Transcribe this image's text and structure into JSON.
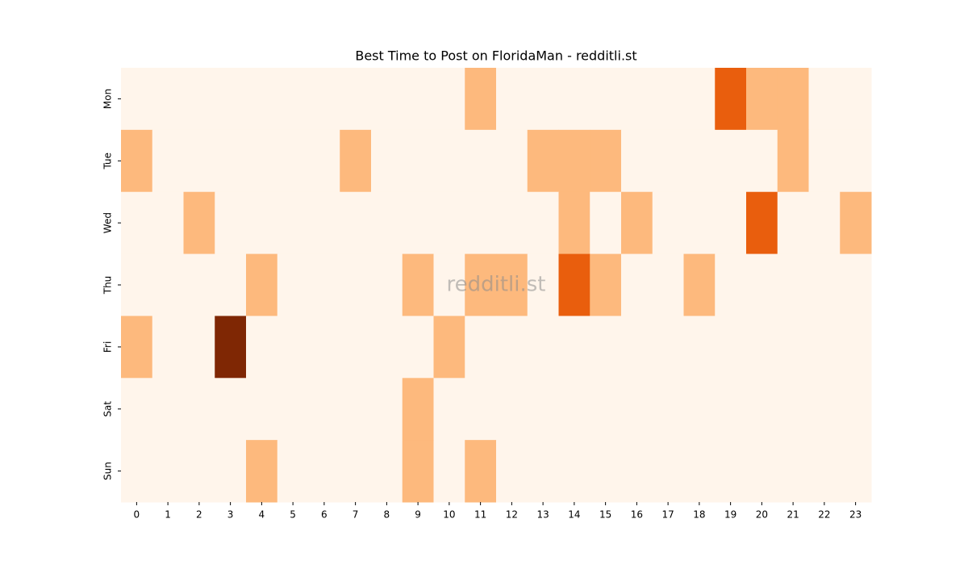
{
  "chart_data": {
    "type": "heatmap",
    "title": "Best Time to Post on FloridaMan - redditli.st",
    "watermark": "redditli.st",
    "x": [
      0,
      1,
      2,
      3,
      4,
      5,
      6,
      7,
      8,
      9,
      10,
      11,
      12,
      13,
      14,
      15,
      16,
      17,
      18,
      19,
      20,
      21,
      22,
      23
    ],
    "y": [
      "Mon",
      "Tue",
      "Wed",
      "Thu",
      "Fri",
      "Sat",
      "Sun"
    ],
    "values": [
      [
        0,
        0,
        0,
        0,
        0,
        0,
        0,
        0,
        0,
        0,
        0,
        1,
        0,
        0,
        0,
        0,
        0,
        0,
        0,
        2,
        1,
        1,
        0,
        0
      ],
      [
        1,
        0,
        0,
        0,
        0,
        0,
        0,
        1,
        0,
        0,
        0,
        0,
        0,
        1,
        1,
        1,
        0,
        0,
        0,
        0,
        0,
        1,
        0,
        0
      ],
      [
        0,
        0,
        1,
        0,
        0,
        0,
        0,
        0,
        0,
        0,
        0,
        0,
        0,
        0,
        1,
        0,
        1,
        0,
        0,
        0,
        2,
        0,
        0,
        1
      ],
      [
        0,
        0,
        0,
        0,
        1,
        0,
        0,
        0,
        0,
        1,
        0,
        1,
        1,
        0,
        2,
        1,
        0,
        0,
        1,
        0,
        0,
        0,
        0,
        0
      ],
      [
        1,
        0,
        0,
        3,
        0,
        0,
        0,
        0,
        0,
        0,
        1,
        0,
        0,
        0,
        0,
        0,
        0,
        0,
        0,
        0,
        0,
        0,
        0,
        0
      ],
      [
        0,
        0,
        0,
        0,
        0,
        0,
        0,
        0,
        0,
        1,
        0,
        0,
        0,
        0,
        0,
        0,
        0,
        0,
        0,
        0,
        0,
        0,
        0,
        0
      ],
      [
        0,
        0,
        0,
        0,
        1,
        0,
        0,
        0,
        0,
        1,
        0,
        1,
        0,
        0,
        0,
        0,
        0,
        0,
        0,
        0,
        0,
        0,
        0,
        0
      ]
    ],
    "color_scale": {
      "range": [
        0,
        3
      ],
      "colors": [
        "#fff5eb",
        "#fdb97d",
        "#e95e0d",
        "#7f2704"
      ]
    }
  }
}
